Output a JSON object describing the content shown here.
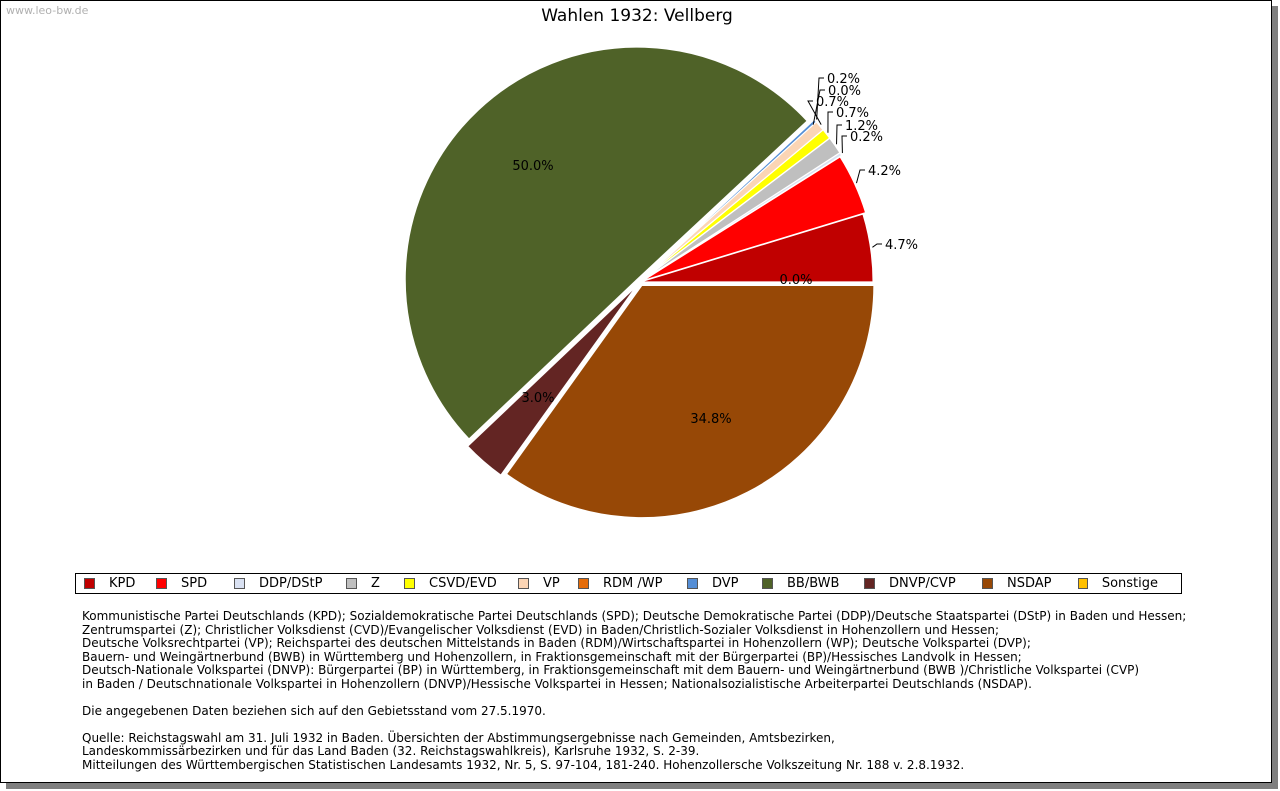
{
  "watermark": "www.leo-bw.de",
  "chart_data": {
    "type": "pie",
    "title": "Wahlen 1932: Vellberg",
    "slices": [
      {
        "name": "KPD",
        "value": 4.7,
        "label": "4.7%",
        "color": "#c00000"
      },
      {
        "name": "SPD",
        "value": 4.2,
        "label": "4.2%",
        "color": "#ff0000"
      },
      {
        "name": "DDP/DStP",
        "value": 0.2,
        "label": "0.2%",
        "color": "#d9e1f2"
      },
      {
        "name": "Z",
        "value": 1.2,
        "label": "1.2%",
        "color": "#bfbfbf"
      },
      {
        "name": "CSVD/EVD",
        "value": 0.7,
        "label": "0.7%",
        "color": "#ffff00"
      },
      {
        "name": "VP",
        "value": 0.7,
        "label": "0.7%",
        "color": "#fbd5b5"
      },
      {
        "name": "RDM /WP",
        "value": 0.0,
        "label": "0.0%",
        "color": "#e46c0a"
      },
      {
        "name": "DVP",
        "value": 0.2,
        "label": "0.2%",
        "color": "#558ed5"
      },
      {
        "name": "BB/BWB",
        "value": 50.0,
        "label": "50.0%",
        "color": "#4f6228"
      },
      {
        "name": "DNVP/CVP",
        "value": 3.0,
        "label": "3.0%",
        "color": "#632523"
      },
      {
        "name": "NSDAP",
        "value": 34.8,
        "label": "34.8%",
        "color": "#974806"
      },
      {
        "name": "Sonstige",
        "value": 0.0,
        "label": "0.0%",
        "color": "#ffc000"
      }
    ],
    "legend_position": "bottom"
  },
  "notes": {
    "parties": [
      "Kommunistische Partei Deutschlands (KPD); Sozialdemokratische Partei Deutschlands (SPD); Deutsche Demokratische Partei (DDP)/Deutsche Staatspartei (DStP) in Baden und Hessen;",
      "Zentrumspartei (Z); Christlicher Volksdienst (CVD)/Evangelischer Volksdienst (EVD) in Baden/Christlich-Sozialer Volksdienst in Hohenzollern und Hessen;",
      "Deutsche Volksrechtpartei (VP); Reichspartei des deutschen Mittelstands in Baden (RDM)/Wirtschaftspartei in Hohenzollern (WP); Deutsche Volkspartei (DVP);",
      "Bauern- und Weingärtnerbund (BWB) in Württemberg und Hohenzollern, in Fraktionsgemeinschaft mit der Bürgerpartei (BP)/Hessisches Landvolk in Hessen;",
      "Deutsch-Nationale Volkspartei (DNVP): Bürgerpartei (BP) in Württemberg, in Fraktionsgemeinschaft mit dem Bauern- und Weingärtnerbund (BWB )/Christliche Volkspartei (CVP)",
      "in Baden / Deutschnationale Volkspartei in Hohenzollern (DNVP)/Hessische Volkspartei in Hessen; Nationalsozialistische Arbeiterpartei Deutschlands (NSDAP)."
    ],
    "territory": "Die angegebenen Daten beziehen sich auf den Gebietsstand vom 27.5.1970.",
    "source": [
      "Quelle: Reichstagswahl am 31. Juli 1932 in Baden. Übersichten der Abstimmungsergebnisse nach Gemeinden, Amtsbezirken,",
      "Landeskommissärbezirken und für das Land Baden (32. Reichstagswahlkreis), Karlsruhe 1932, S. 2-39.",
      "Mitteilungen des Württembergischen Statistischen Landesamts 1932, Nr. 5, S. 97-104, 181-240. Hohenzollersche Volkszeitung Nr. 188 v. 2.8.1932."
    ]
  }
}
